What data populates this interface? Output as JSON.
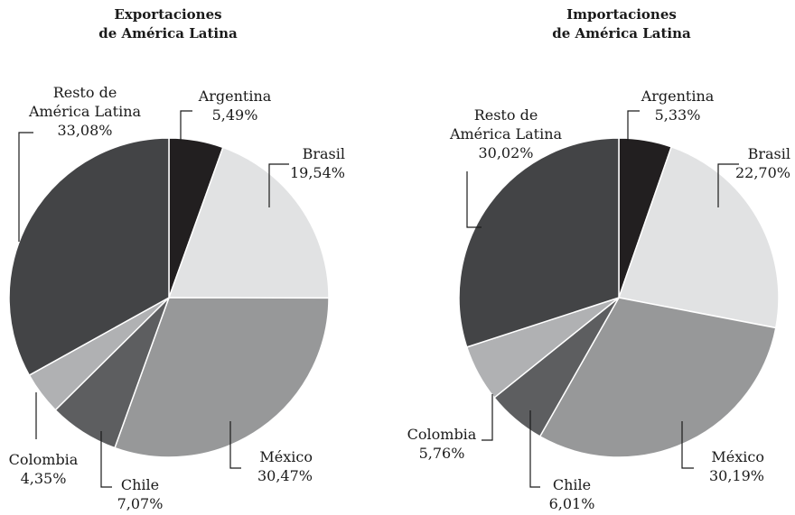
{
  "chart_data": [
    {
      "type": "pie",
      "title_line1": "Exportaciones",
      "title_line2": "de América Latina",
      "slices": [
        {
          "name_lines": [
            "Argentina"
          ],
          "value": 5.49,
          "label": "5,49%",
          "color": "#221f20"
        },
        {
          "name_lines": [
            "Brasil"
          ],
          "value": 19.54,
          "label": "19,54%",
          "color": "#e1e2e3"
        },
        {
          "name_lines": [
            "México"
          ],
          "value": 30.47,
          "label": "30,47%",
          "color": "#979899"
        },
        {
          "name_lines": [
            "Chile"
          ],
          "value": 7.07,
          "label": "7,07%",
          "color": "#5d5e60"
        },
        {
          "name_lines": [
            "Colombia"
          ],
          "value": 4.35,
          "label": "4,35%",
          "color": "#b0b1b3"
        },
        {
          "name_lines": [
            "Resto de",
            "América Latina"
          ],
          "value": 33.08,
          "label": "33,08%",
          "color": "#434446"
        }
      ]
    },
    {
      "type": "pie",
      "title_line1": "Importaciones",
      "title_line2": "de América Latina",
      "slices": [
        {
          "name_lines": [
            "Argentina"
          ],
          "value": 5.33,
          "label": "5,33%",
          "color": "#221f20"
        },
        {
          "name_lines": [
            "Brasil"
          ],
          "value": 22.7,
          "label": "22,70%",
          "color": "#e1e2e3"
        },
        {
          "name_lines": [
            "México"
          ],
          "value": 30.19,
          "label": "30,19%",
          "color": "#979899"
        },
        {
          "name_lines": [
            "Chile"
          ],
          "value": 6.01,
          "label": "6,01%",
          "color": "#5d5e60"
        },
        {
          "name_lines": [
            "Colombia"
          ],
          "value": 5.76,
          "label": "5,76%",
          "color": "#b0b1b3"
        },
        {
          "name_lines": [
            "Resto de",
            "América Latina"
          ],
          "value": 30.02,
          "label": "30,02%",
          "color": "#434446"
        }
      ]
    }
  ]
}
